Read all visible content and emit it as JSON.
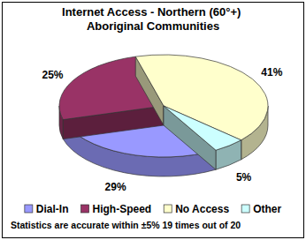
{
  "chart_data": {
    "type": "pie",
    "title": "Internet Access - Northern (60°+) Aboriginal Communities",
    "categories": [
      "Dial-In",
      "High-Speed",
      "No Access",
      "Other"
    ],
    "values": [
      29,
      25,
      41,
      5
    ],
    "value_labels": [
      "29%",
      "25%",
      "41%",
      "5%"
    ],
    "colors": [
      "#9999ff",
      "#993366",
      "#ffffcc",
      "#ccffff"
    ],
    "data_labels": true,
    "legend": "bottom",
    "annotations": [
      "Statistics are accurate within ±5% 19 times out of 20"
    ]
  }
}
